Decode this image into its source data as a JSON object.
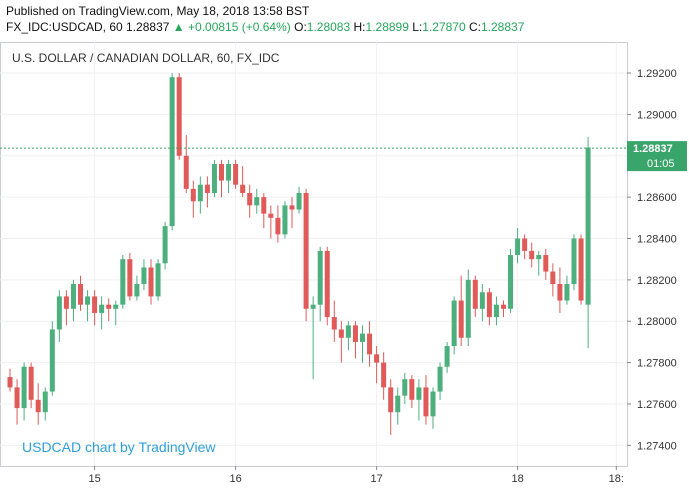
{
  "header": {
    "published": "Published on TradingView.com, May 18, 2018 13:58 BST",
    "symbol": "FX_IDC:USDCAD, 60",
    "last": "1.28837",
    "change": "+0.00815 (+0.64%)",
    "open_label": "O:",
    "open": "1.28083",
    "high_label": "H:",
    "high": "1.28899",
    "low_label": "L:",
    "low": "1.27870",
    "close_label": "C:",
    "close": "1.28837",
    "up_arrow": "triangle-up-icon"
  },
  "colors": {
    "up": "#4caf7d",
    "down": "#e05a5a",
    "price_line": "#3aa56a",
    "watermark": "#2fa0d8",
    "grid": "#eef0f2"
  },
  "chart_data": {
    "type": "candlestick",
    "title": "U.S. DOLLAR / CANADIAN DOLLAR, 60, FX_IDC",
    "watermark": "USDCAD chart by TradingView",
    "ylim": [
      1.273,
      1.2935
    ],
    "yticks": [
      "1.29200",
      "1.29000",
      "1.28800",
      "1.28600",
      "1.28400",
      "1.28200",
      "1.28000",
      "1.27800",
      "1.27600",
      "1.27400"
    ],
    "xticks": [
      {
        "label": "15",
        "index": 12
      },
      {
        "label": "16",
        "index": 32
      },
      {
        "label": "17",
        "index": 52
      },
      {
        "label": "18",
        "index": 72
      },
      {
        "label": "18:",
        "index": 86
      }
    ],
    "last_price": "1.28837",
    "countdown": "01:05",
    "candles": [
      [
        1.2773,
        1.2777,
        1.2766,
        1.2768
      ],
      [
        1.2768,
        1.2772,
        1.275,
        1.2758
      ],
      [
        1.2758,
        1.278,
        1.2752,
        1.2778
      ],
      [
        1.2778,
        1.278,
        1.2758,
        1.2762
      ],
      [
        1.2762,
        1.277,
        1.275,
        1.2756
      ],
      [
        1.2756,
        1.2768,
        1.2752,
        1.2766
      ],
      [
        1.2766,
        1.28,
        1.2764,
        1.2796
      ],
      [
        1.2796,
        1.2815,
        1.279,
        1.2812
      ],
      [
        1.2812,
        1.2815,
        1.2798,
        1.2806
      ],
      [
        1.2806,
        1.282,
        1.28,
        1.2818
      ],
      [
        1.2818,
        1.2822,
        1.2805,
        1.2808
      ],
      [
        1.2808,
        1.2815,
        1.28,
        1.2812
      ],
      [
        1.2812,
        1.2815,
        1.2798,
        1.2804
      ],
      [
        1.2804,
        1.2812,
        1.2796,
        1.2808
      ],
      [
        1.2808,
        1.2811,
        1.28,
        1.2806
      ],
      [
        1.2806,
        1.281,
        1.2798,
        1.2808
      ],
      [
        1.2808,
        1.2832,
        1.2806,
        1.283
      ],
      [
        1.283,
        1.2833,
        1.281,
        1.2812
      ],
      [
        1.2812,
        1.2822,
        1.281,
        1.2818
      ],
      [
        1.2818,
        1.283,
        1.2815,
        1.2826
      ],
      [
        1.2826,
        1.283,
        1.2808,
        1.2812
      ],
      [
        1.2812,
        1.283,
        1.281,
        1.2828
      ],
      [
        1.2828,
        1.2848,
        1.2825,
        1.2846
      ],
      [
        1.2846,
        1.292,
        1.2844,
        1.2918
      ],
      [
        1.2918,
        1.292,
        1.2878,
        1.288
      ],
      [
        1.288,
        1.289,
        1.2862,
        1.2864
      ],
      [
        1.2864,
        1.2868,
        1.285,
        1.2858
      ],
      [
        1.2858,
        1.287,
        1.2852,
        1.2866
      ],
      [
        1.2866,
        1.287,
        1.2855,
        1.2862
      ],
      [
        1.2862,
        1.2878,
        1.286,
        1.2876
      ],
      [
        1.2876,
        1.2878,
        1.286,
        1.2868
      ],
      [
        1.2868,
        1.2878,
        1.2862,
        1.2876
      ],
      [
        1.2876,
        1.2878,
        1.2864,
        1.2866
      ],
      [
        1.2866,
        1.2875,
        1.286,
        1.2862
      ],
      [
        1.2862,
        1.2866,
        1.285,
        1.2856
      ],
      [
        1.2856,
        1.2864,
        1.2852,
        1.286
      ],
      [
        1.286,
        1.2862,
        1.2845,
        1.2852
      ],
      [
        1.2852,
        1.2856,
        1.284,
        1.285
      ],
      [
        1.285,
        1.2856,
        1.2838,
        1.2842
      ],
      [
        1.2842,
        1.2858,
        1.284,
        1.2856
      ],
      [
        1.2856,
        1.286,
        1.2845,
        1.2854
      ],
      [
        1.2854,
        1.2865,
        1.2852,
        1.2862
      ],
      [
        1.2862,
        1.2864,
        1.28,
        1.2806
      ],
      [
        1.2806,
        1.2812,
        1.2772,
        1.2808
      ],
      [
        1.2808,
        1.2836,
        1.28,
        1.2834
      ],
      [
        1.2834,
        1.2836,
        1.2798,
        1.2802
      ],
      [
        1.2802,
        1.281,
        1.279,
        1.2796
      ],
      [
        1.2796,
        1.28,
        1.278,
        1.2792
      ],
      [
        1.2792,
        1.28,
        1.2786,
        1.2798
      ],
      [
        1.2798,
        1.28,
        1.2782,
        1.279
      ],
      [
        1.279,
        1.2798,
        1.278,
        1.2794
      ],
      [
        1.2794,
        1.28,
        1.2778,
        1.2784
      ],
      [
        1.2784,
        1.2788,
        1.277,
        1.278
      ],
      [
        1.278,
        1.2785,
        1.2762,
        1.2768
      ],
      [
        1.2768,
        1.2772,
        1.2745,
        1.2756
      ],
      [
        1.2756,
        1.2768,
        1.275,
        1.2764
      ],
      [
        1.2764,
        1.2775,
        1.276,
        1.2772
      ],
      [
        1.2772,
        1.2774,
        1.2758,
        1.2762
      ],
      [
        1.2762,
        1.2772,
        1.2752,
        1.2768
      ],
      [
        1.2768,
        1.2774,
        1.275,
        1.2754
      ],
      [
        1.2754,
        1.2768,
        1.2748,
        1.2766
      ],
      [
        1.2766,
        1.278,
        1.2762,
        1.2778
      ],
      [
        1.2778,
        1.279,
        1.2775,
        1.2788
      ],
      [
        1.2788,
        1.2812,
        1.2784,
        1.281
      ],
      [
        1.281,
        1.2822,
        1.2788,
        1.2792
      ],
      [
        1.2792,
        1.2825,
        1.2788,
        1.282
      ],
      [
        1.282,
        1.2822,
        1.2802,
        1.2806
      ],
      [
        1.2806,
        1.2818,
        1.28,
        1.2814
      ],
      [
        1.2814,
        1.2816,
        1.2798,
        1.2802
      ],
      [
        1.2802,
        1.2812,
        1.2798,
        1.2808
      ],
      [
        1.2808,
        1.281,
        1.2802,
        1.2806
      ],
      [
        1.2806,
        1.2835,
        1.2804,
        1.2832
      ],
      [
        1.2832,
        1.2845,
        1.2828,
        1.284
      ],
      [
        1.284,
        1.2842,
        1.283,
        1.2834
      ],
      [
        1.2834,
        1.2838,
        1.2826,
        1.283
      ],
      [
        1.283,
        1.2834,
        1.2822,
        1.2832
      ],
      [
        1.2832,
        1.2835,
        1.282,
        1.2824
      ],
      [
        1.2824,
        1.2828,
        1.2812,
        1.2818
      ],
      [
        1.2818,
        1.2826,
        1.2804,
        1.281
      ],
      [
        1.281,
        1.2822,
        1.2808,
        1.2818
      ],
      [
        1.2818,
        1.2842,
        1.2815,
        1.284
      ],
      [
        1.284,
        1.2842,
        1.2808,
        1.281
      ],
      [
        1.2808,
        1.2889,
        1.2787,
        1.2884
      ]
    ]
  }
}
